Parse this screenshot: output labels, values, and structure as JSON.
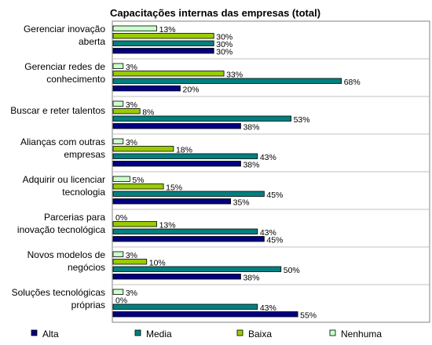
{
  "chart_data": {
    "type": "bar",
    "orientation": "horizontal",
    "title": "Capacitações internas das empresas (total)",
    "categories": [
      [
        "Gerenciar inovação",
        "aberta"
      ],
      [
        "Gerenciar redes de",
        "conhecimento"
      ],
      [
        "Buscar e reter talentos"
      ],
      [
        "Alianças com outras",
        "empresas"
      ],
      [
        "Adquirir ou licenciar",
        "tecnologia"
      ],
      [
        "Parcerias para",
        "inovação tecnológica"
      ],
      [
        "Novos modelos de",
        "negócios"
      ],
      [
        "Soluções tecnológicas",
        "próprias"
      ]
    ],
    "series": [
      {
        "name": "Nenhuma",
        "color": "#ccffcc",
        "values": [
          13,
          3,
          3,
          3,
          5,
          0,
          3,
          3
        ]
      },
      {
        "name": "Baixa",
        "color": "#99cc00",
        "values": [
          30,
          33,
          8,
          18,
          15,
          13,
          10,
          0
        ]
      },
      {
        "name": "Media",
        "color": "#008080",
        "values": [
          30,
          68,
          53,
          43,
          45,
          43,
          50,
          43
        ]
      },
      {
        "name": "Alta",
        "color": "#000080",
        "values": [
          30,
          20,
          38,
          38,
          35,
          45,
          38,
          55
        ]
      }
    ],
    "value_suffix": "%",
    "legend_order": [
      "Alta",
      "Media",
      "Baixa",
      "Nenhuma"
    ],
    "legend_position": "bottom",
    "xlim": [
      0,
      100
    ],
    "grid": false
  }
}
